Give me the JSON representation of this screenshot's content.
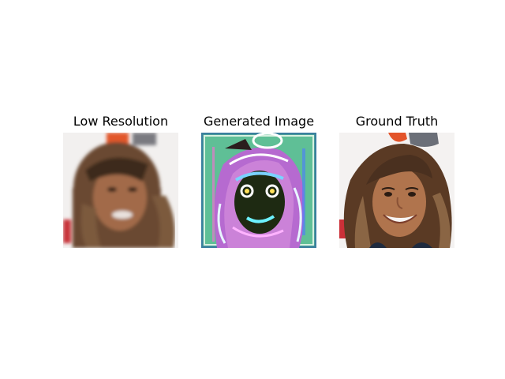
{
  "figure": {
    "panels": [
      {
        "title": "Low Resolution"
      },
      {
        "title": "Generated Image"
      },
      {
        "title": "Ground Truth"
      }
    ]
  }
}
